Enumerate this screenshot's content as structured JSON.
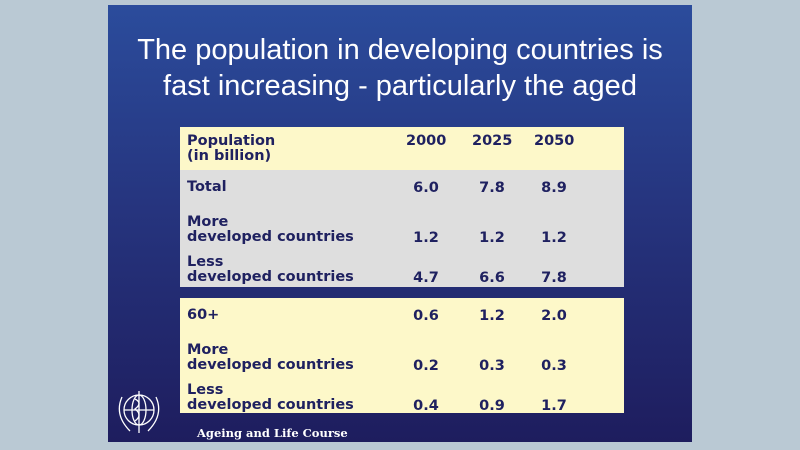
{
  "title": [
    "The population in developing countries is",
    "fast increasing  - particularly the aged"
  ],
  "table": {
    "header": {
      "label": [
        "Population",
        "(in billion)"
      ],
      "years": [
        "2000",
        "2025",
        "2050"
      ]
    },
    "section1": [
      {
        "label": [
          "",
          "Total"
        ],
        "values": [
          "6.0",
          "7.8",
          "8.9"
        ]
      },
      {
        "label": [
          "More",
          "developed countries"
        ],
        "values": [
          "1.2",
          "1.2",
          "1.2"
        ]
      },
      {
        "label": [
          "Less",
          "developed countries"
        ],
        "values": [
          "4.7",
          "6.6",
          "7.8"
        ]
      }
    ],
    "section2": [
      {
        "label": [
          "",
          "60+"
        ],
        "values": [
          "0.6",
          "1.2",
          "2.0"
        ]
      },
      {
        "label": [
          "More",
          "developed countries"
        ],
        "values": [
          "0.2",
          "0.3",
          "0.3"
        ]
      },
      {
        "label": [
          "Less",
          "developed countries"
        ],
        "values": [
          "0.4",
          "0.9",
          "1.7"
        ]
      }
    ]
  },
  "footer": "Ageing and Life Course",
  "logo": "who-emblem"
}
